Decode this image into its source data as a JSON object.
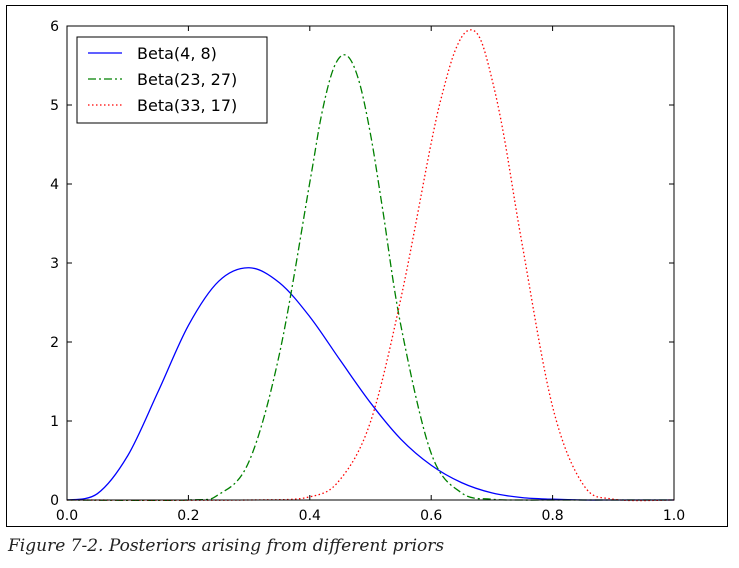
{
  "caption": "Figure 7-2. Posteriors arising from different priors",
  "chart_data": {
    "type": "line",
    "title": "",
    "xlabel": "",
    "ylabel": "",
    "xlim": [
      0.0,
      1.0
    ],
    "ylim": [
      0,
      6
    ],
    "xticks": [
      "0.0",
      "0.2",
      "0.4",
      "0.6",
      "0.8",
      "1.0"
    ],
    "yticks": [
      "0",
      "1",
      "2",
      "3",
      "4",
      "5",
      "6"
    ],
    "grid": false,
    "legend_position": "top-left",
    "series": [
      {
        "name": "Beta(4, 8)",
        "color": "#0000ff",
        "style": "solid",
        "x": [
          0.0,
          0.05,
          0.1,
          0.15,
          0.2,
          0.25,
          0.3,
          0.35,
          0.4,
          0.45,
          0.5,
          0.55,
          0.6,
          0.65,
          0.7,
          0.75,
          0.8,
          0.85,
          0.9,
          0.95,
          1.0
        ],
        "y": [
          0.0,
          0.08,
          0.56,
          1.37,
          2.21,
          2.77,
          2.94,
          2.75,
          2.32,
          1.77,
          1.23,
          0.77,
          0.44,
          0.22,
          0.09,
          0.03,
          0.01,
          0.0,
          0.0,
          0.0,
          0.0
        ]
      },
      {
        "name": "Beta(23, 27)",
        "color": "#008000",
        "style": "dashdot",
        "x": [
          0.0,
          0.2,
          0.25,
          0.3,
          0.35,
          0.4,
          0.42,
          0.44,
          0.46,
          0.48,
          0.5,
          0.52,
          0.55,
          0.6,
          0.65,
          0.7,
          0.75,
          0.8,
          1.0
        ],
        "y": [
          0.0,
          0.0,
          0.07,
          0.49,
          1.85,
          4.02,
          4.9,
          5.48,
          5.63,
          5.33,
          4.63,
          3.68,
          2.21,
          0.59,
          0.09,
          0.01,
          0.0,
          0.0,
          0.0
        ]
      },
      {
        "name": "Beta(33, 17)",
        "color": "#ff0000",
        "style": "dotted",
        "x": [
          0.0,
          0.3,
          0.4,
          0.45,
          0.5,
          0.55,
          0.6,
          0.62,
          0.64,
          0.66,
          0.68,
          0.7,
          0.72,
          0.75,
          0.8,
          0.85,
          0.9,
          1.0
        ],
        "y": [
          0.0,
          0.0,
          0.04,
          0.26,
          0.99,
          2.55,
          4.52,
          5.19,
          5.7,
          5.94,
          5.85,
          5.33,
          4.6,
          3.23,
          1.18,
          0.2,
          0.01,
          0.0
        ]
      }
    ]
  }
}
